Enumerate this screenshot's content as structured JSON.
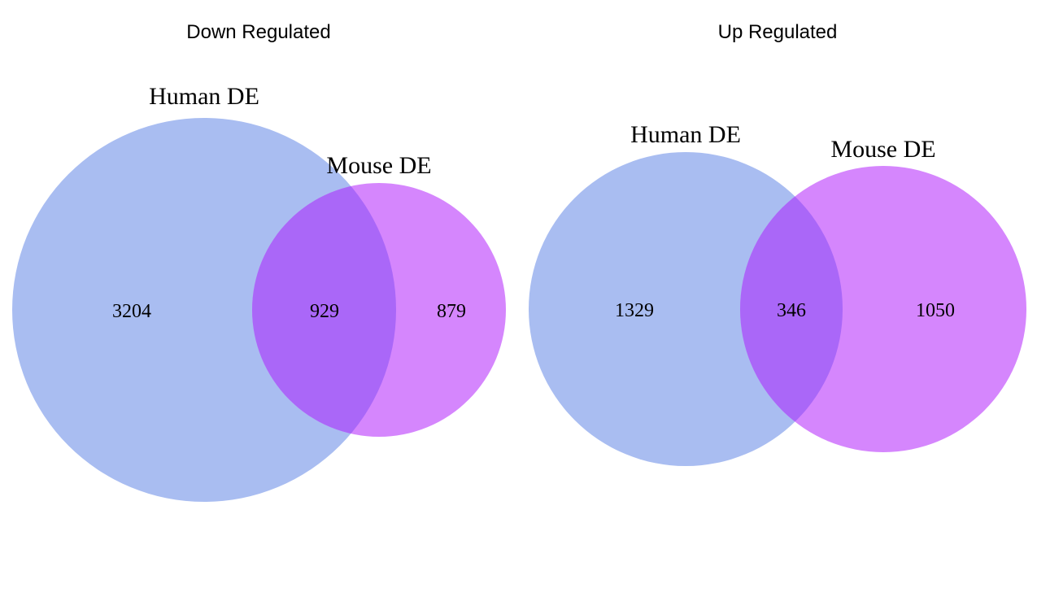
{
  "colors": {
    "human": "#a9bdf1",
    "mouse": "#d586fd",
    "overlap": "#aa67f8"
  },
  "panels": [
    {
      "title": "Down Regulated",
      "sets": {
        "left": "Human DE",
        "right": "Mouse DE"
      },
      "counts": {
        "left_only": "3204",
        "both": "929",
        "right_only": "879"
      }
    },
    {
      "title": "Up Regulated",
      "sets": {
        "left": "Human DE",
        "right": "Mouse DE"
      },
      "counts": {
        "left_only": "1329",
        "both": "346",
        "right_only": "1050"
      }
    }
  ]
}
